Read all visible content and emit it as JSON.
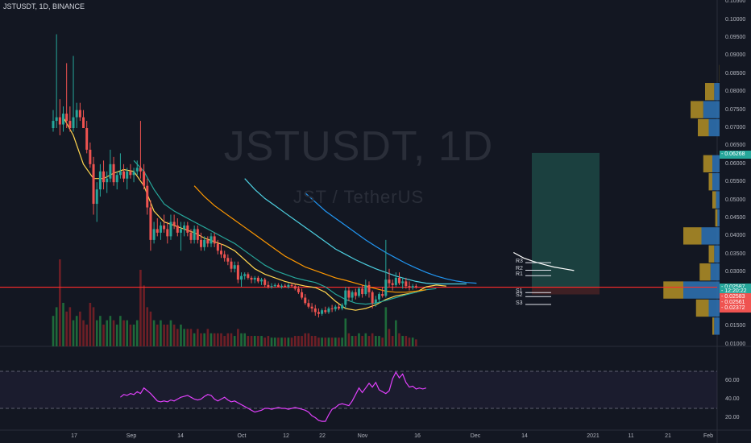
{
  "header": {
    "title": "JSTUSDT, 1D, BINANCE"
  },
  "watermark": {
    "symbol": "JSTUSDT, 1D",
    "desc": "JST / TetherUS"
  },
  "colors": {
    "up": "#26a69a",
    "down": "#ef5350",
    "bg": "#131722",
    "rsi": "#e040fb",
    "support": "#ff2b2b"
  },
  "chart_data": {
    "type": "candlestick",
    "x_ticks": [
      "17",
      "Sep",
      "14",
      "Oct",
      "12",
      "22",
      "Nov",
      "16",
      "Dec",
      "14",
      "2021",
      "11",
      "21",
      "Feb"
    ],
    "price_axis": [
      "0.10500",
      "0.10000",
      "0.09500",
      "0.09000",
      "0.08500",
      "0.08000",
      "0.07500",
      "0.07000",
      "0.06500",
      "0.06000",
      "0.05500",
      "0.05000",
      "0.04500",
      "0.04000",
      "0.03500",
      "0.03000",
      "0.02500",
      "0.02000",
      "0.01500",
      "0.01000"
    ],
    "price_range": [
      0.0095,
      0.1055
    ],
    "price_tags": [
      {
        "label": "0.06268",
        "value": 0.06268,
        "color": "#26a69a"
      },
      {
        "label": "0.02587",
        "value": 0.02587,
        "color": "#26a69a"
      },
      {
        "label": "12:20:22",
        "value": 0.0246,
        "color": "#26a69a"
      },
      {
        "label": "0.02583",
        "value": 0.0231,
        "color": "#ef5350"
      },
      {
        "label": "0.02561",
        "value": 0.0215,
        "color": "#ef5350"
      },
      {
        "label": "0.02372",
        "value": 0.0199,
        "color": "#ef5350"
      }
    ],
    "pivots": [
      {
        "label": "R3",
        "value": 0.0327
      },
      {
        "label": "R2",
        "value": 0.0306
      },
      {
        "label": "R1",
        "value": 0.0291
      },
      {
        "label": "S1",
        "value": 0.0244
      },
      {
        "label": "S2",
        "value": 0.0233
      },
      {
        "label": "S3",
        "value": 0.0211
      }
    ],
    "support_level": 0.0259,
    "target_box": {
      "from": 0.0259,
      "to": 0.0631
    },
    "candles": [
      [
        0.07,
        0.075,
        0.069,
        0.072
      ],
      [
        0.072,
        0.096,
        0.07,
        0.073
      ],
      [
        0.073,
        0.078,
        0.068,
        0.071
      ],
      [
        0.071,
        0.076,
        0.069,
        0.074
      ],
      [
        0.074,
        0.088,
        0.07,
        0.072
      ],
      [
        0.072,
        0.076,
        0.069,
        0.07
      ],
      [
        0.07,
        0.09,
        0.069,
        0.073
      ],
      [
        0.073,
        0.077,
        0.07,
        0.075
      ],
      [
        0.075,
        0.077,
        0.072,
        0.073
      ],
      [
        0.073,
        0.075,
        0.07,
        0.07
      ],
      [
        0.07,
        0.072,
        0.063,
        0.064
      ],
      [
        0.064,
        0.066,
        0.059,
        0.06
      ],
      [
        0.06,
        0.062,
        0.046,
        0.049
      ],
      [
        0.049,
        0.055,
        0.044,
        0.053
      ],
      [
        0.053,
        0.06,
        0.051,
        0.058
      ],
      [
        0.058,
        0.061,
        0.053,
        0.055
      ],
      [
        0.055,
        0.058,
        0.052,
        0.056
      ],
      [
        0.056,
        0.064,
        0.055,
        0.06
      ],
      [
        0.06,
        0.062,
        0.054,
        0.055
      ],
      [
        0.055,
        0.058,
        0.053,
        0.057
      ],
      [
        0.057,
        0.063,
        0.056,
        0.058
      ],
      [
        0.058,
        0.06,
        0.055,
        0.056
      ],
      [
        0.056,
        0.059,
        0.053,
        0.058
      ],
      [
        0.058,
        0.06,
        0.056,
        0.057
      ],
      [
        0.057,
        0.059,
        0.055,
        0.058
      ],
      [
        0.058,
        0.061,
        0.057,
        0.059
      ],
      [
        0.059,
        0.072,
        0.056,
        0.058
      ],
      [
        0.058,
        0.06,
        0.053,
        0.054
      ],
      [
        0.054,
        0.056,
        0.046,
        0.048
      ],
      [
        0.048,
        0.05,
        0.036,
        0.039
      ],
      [
        0.039,
        0.044,
        0.038,
        0.042
      ],
      [
        0.042,
        0.045,
        0.04,
        0.041
      ],
      [
        0.041,
        0.044,
        0.039,
        0.043
      ],
      [
        0.043,
        0.046,
        0.041,
        0.042
      ],
      [
        0.042,
        0.044,
        0.038,
        0.04
      ],
      [
        0.04,
        0.046,
        0.039,
        0.044
      ],
      [
        0.044,
        0.046,
        0.042,
        0.043
      ],
      [
        0.043,
        0.045,
        0.04,
        0.041
      ],
      [
        0.041,
        0.044,
        0.036,
        0.042
      ],
      [
        0.042,
        0.044,
        0.04,
        0.043
      ],
      [
        0.043,
        0.044,
        0.04,
        0.041
      ],
      [
        0.041,
        0.042,
        0.038,
        0.039
      ],
      [
        0.039,
        0.043,
        0.038,
        0.042
      ],
      [
        0.042,
        0.043,
        0.038,
        0.039
      ],
      [
        0.039,
        0.041,
        0.036,
        0.037
      ],
      [
        0.037,
        0.04,
        0.036,
        0.039
      ],
      [
        0.039,
        0.04,
        0.037,
        0.038
      ],
      [
        0.038,
        0.041,
        0.037,
        0.04
      ],
      [
        0.04,
        0.041,
        0.037,
        0.038
      ],
      [
        0.038,
        0.039,
        0.035,
        0.036
      ],
      [
        0.036,
        0.038,
        0.034,
        0.035
      ],
      [
        0.035,
        0.036,
        0.033,
        0.034
      ],
      [
        0.034,
        0.035,
        0.032,
        0.033
      ],
      [
        0.033,
        0.034,
        0.03,
        0.031
      ],
      [
        0.031,
        0.033,
        0.03,
        0.032
      ],
      [
        0.032,
        0.033,
        0.027,
        0.028
      ],
      [
        0.028,
        0.03,
        0.026,
        0.029
      ],
      [
        0.029,
        0.03,
        0.028,
        0.0295
      ],
      [
        0.0295,
        0.03,
        0.028,
        0.0285
      ],
      [
        0.0285,
        0.029,
        0.027,
        0.028
      ],
      [
        0.028,
        0.029,
        0.027,
        0.0285
      ],
      [
        0.0285,
        0.029,
        0.027,
        0.0275
      ],
      [
        0.0275,
        0.0285,
        0.0265,
        0.028
      ],
      [
        0.028,
        0.0285,
        0.026,
        0.0265
      ],
      [
        0.0265,
        0.0275,
        0.0255,
        0.026
      ],
      [
        0.026,
        0.027,
        0.0255,
        0.0262
      ],
      [
        0.0262,
        0.027,
        0.0258,
        0.0265
      ],
      [
        0.0265,
        0.027,
        0.0258,
        0.026
      ],
      [
        0.026,
        0.0268,
        0.0255,
        0.0263
      ],
      [
        0.0263,
        0.0268,
        0.0258,
        0.026
      ],
      [
        0.026,
        0.027,
        0.0255,
        0.0265
      ],
      [
        0.0265,
        0.027,
        0.0258,
        0.0262
      ],
      [
        0.0262,
        0.0268,
        0.025,
        0.0255
      ],
      [
        0.0255,
        0.0262,
        0.024,
        0.0245
      ],
      [
        0.0245,
        0.0255,
        0.0225,
        0.023
      ],
      [
        0.023,
        0.024,
        0.021,
        0.0215
      ],
      [
        0.0215,
        0.0225,
        0.02,
        0.0205
      ],
      [
        0.0205,
        0.0215,
        0.019,
        0.02
      ],
      [
        0.02,
        0.021,
        0.018,
        0.019
      ],
      [
        0.019,
        0.02,
        0.0175,
        0.0185
      ],
      [
        0.0185,
        0.02,
        0.018,
        0.0195
      ],
      [
        0.0195,
        0.0205,
        0.0185,
        0.019
      ],
      [
        0.019,
        0.0205,
        0.0185,
        0.02
      ],
      [
        0.02,
        0.021,
        0.019,
        0.0198
      ],
      [
        0.0198,
        0.021,
        0.0192,
        0.0205
      ],
      [
        0.0205,
        0.0212,
        0.0195,
        0.02
      ],
      [
        0.02,
        0.0215,
        0.0195,
        0.021
      ],
      [
        0.021,
        0.026,
        0.02,
        0.025
      ],
      [
        0.025,
        0.026,
        0.022,
        0.023
      ],
      [
        0.023,
        0.025,
        0.022,
        0.0245
      ],
      [
        0.0245,
        0.0255,
        0.0225,
        0.0235
      ],
      [
        0.0235,
        0.026,
        0.023,
        0.0255
      ],
      [
        0.0255,
        0.0265,
        0.023,
        0.024
      ],
      [
        0.024,
        0.028,
        0.0235,
        0.0265
      ],
      [
        0.0265,
        0.0275,
        0.023,
        0.0245
      ],
      [
        0.0245,
        0.025,
        0.02,
        0.0215
      ],
      [
        0.0215,
        0.0235,
        0.0205,
        0.0225
      ],
      [
        0.0225,
        0.0245,
        0.0215,
        0.024
      ],
      [
        0.024,
        0.026,
        0.023,
        0.0235
      ],
      [
        0.0235,
        0.039,
        0.023,
        0.028
      ],
      [
        0.028,
        0.031,
        0.026,
        0.027
      ],
      [
        0.027,
        0.028,
        0.025,
        0.0265
      ],
      [
        0.0265,
        0.03,
        0.026,
        0.0285
      ],
      [
        0.0285,
        0.03,
        0.0265,
        0.027
      ],
      [
        0.027,
        0.0285,
        0.0255,
        0.0275
      ],
      [
        0.0275,
        0.0285,
        0.0255,
        0.0262
      ],
      [
        0.0262,
        0.0275,
        0.025,
        0.0258
      ],
      [
        0.0258,
        0.0268,
        0.0252,
        0.0262
      ],
      [
        0.0262,
        0.0268,
        0.0255,
        0.0259
      ]
    ],
    "volumes": [
      0.35,
      0.45,
      1.0,
      0.5,
      0.4,
      0.45,
      0.3,
      0.35,
      0.4,
      0.3,
      0.25,
      0.5,
      0.45,
      0.3,
      0.35,
      0.25,
      0.3,
      0.35,
      0.3,
      0.25,
      0.35,
      0.3,
      0.3,
      0.25,
      0.25,
      0.3,
      0.88,
      0.7,
      0.45,
      0.4,
      0.3,
      0.25,
      0.3,
      0.25,
      0.25,
      0.3,
      0.25,
      0.2,
      0.25,
      0.2,
      0.2,
      0.2,
      0.15,
      0.2,
      0.15,
      0.15,
      0.2,
      0.15,
      0.15,
      0.15,
      0.15,
      0.12,
      0.15,
      0.15,
      0.12,
      0.2,
      0.15,
      0.15,
      0.12,
      0.12,
      0.12,
      0.12,
      0.12,
      0.1,
      0.12,
      0.1,
      0.1,
      0.1,
      0.1,
      0.1,
      0.1,
      0.1,
      0.12,
      0.12,
      0.12,
      0.15,
      0.15,
      0.12,
      0.12,
      0.1,
      0.1,
      0.1,
      0.1,
      0.1,
      0.1,
      0.1,
      0.1,
      0.32,
      0.15,
      0.12,
      0.12,
      0.15,
      0.12,
      0.15,
      0.12,
      0.15,
      0.12,
      0.12,
      0.1,
      0.45,
      0.2,
      0.12,
      0.3,
      0.15,
      0.12,
      0.12,
      0.1,
      0.1,
      0.08
    ],
    "ma_lines": [
      {
        "color": "#ffd54f",
        "start": 3,
        "values": [
          0.073,
          0.068,
          0.06,
          0.056,
          0.056,
          0.0575,
          0.0585,
          0.058,
          0.054,
          0.047,
          0.044,
          0.043,
          0.042,
          0.041,
          0.0395,
          0.0385,
          0.0375,
          0.036,
          0.0335,
          0.031,
          0.0295,
          0.0285,
          0.0275,
          0.0268,
          0.0262,
          0.0258,
          0.0245,
          0.022,
          0.02,
          0.0195,
          0.02,
          0.021,
          0.0225,
          0.0235,
          0.024,
          0.0245,
          0.026,
          0.0265,
          0.0262
        ]
      },
      {
        "color": "#26a69a",
        "start": 24,
        "values": [
          0.061,
          0.058,
          0.053,
          0.049,
          0.047,
          0.0455,
          0.044,
          0.0425,
          0.041,
          0.0395,
          0.038,
          0.036,
          0.034,
          0.032,
          0.0305,
          0.0295,
          0.0285,
          0.0278,
          0.0272,
          0.026,
          0.024,
          0.0225,
          0.0215,
          0.0212,
          0.0215,
          0.0222,
          0.023,
          0.0238,
          0.0245,
          0.0252,
          0.0255
        ]
      },
      {
        "color": "#ff9800",
        "start": 42,
        "values": [
          0.054,
          0.051,
          0.0485,
          0.0465,
          0.0445,
          0.0425,
          0.0405,
          0.0385,
          0.0365,
          0.0345,
          0.033,
          0.0315,
          0.0305,
          0.0295,
          0.0285,
          0.0278,
          0.027,
          0.0262,
          0.0255,
          0.0248,
          0.0245,
          0.0245,
          0.0248,
          0.0252
        ]
      },
      {
        "color": "#4dd0e1",
        "start": 57,
        "values": [
          0.056,
          0.053,
          0.0505,
          0.0485,
          0.0465,
          0.0445,
          0.0425,
          0.0405,
          0.0385,
          0.0365,
          0.035,
          0.0335,
          0.0322,
          0.031,
          0.03,
          0.029,
          0.0282,
          0.0275,
          0.027,
          0.0268,
          0.0268,
          0.0268,
          0.0268
        ]
      },
      {
        "color": "#2196f3",
        "start": 75,
        "values": [
          0.052,
          0.0495,
          0.047,
          0.045,
          0.043,
          0.041,
          0.039,
          0.0372,
          0.0355,
          0.034,
          0.0325,
          0.0312,
          0.03,
          0.029,
          0.0282,
          0.0276,
          0.0272,
          0.027
        ]
      },
      {
        "color": "#ffffff",
        "start": 137,
        "values": [
          0.0355,
          0.034,
          0.033,
          0.0322,
          0.0315,
          0.031,
          0.0305
        ]
      }
    ],
    "volume_profile": [
      {
        "price": 0.085,
        "up": 0.005,
        "down": 0
      },
      {
        "price": 0.08,
        "up": 0.25,
        "down": 0.15
      },
      {
        "price": 0.075,
        "up": 0.35,
        "down": 0.45
      },
      {
        "price": 0.07,
        "up": 0.3,
        "down": 0.3
      },
      {
        "price": 0.06,
        "up": 0.25,
        "down": 0.2
      },
      {
        "price": 0.055,
        "up": 0.1,
        "down": 0.2
      },
      {
        "price": 0.05,
        "up": 0.1,
        "down": 0.1
      },
      {
        "price": 0.045,
        "up": 0.06,
        "down": 0.06
      },
      {
        "price": 0.04,
        "up": 0.5,
        "down": 0.5
      },
      {
        "price": 0.035,
        "up": 0.15,
        "down": 0.15
      },
      {
        "price": 0.03,
        "up": 0.3,
        "down": 0.25
      },
      {
        "price": 0.025,
        "up": 0.55,
        "down": 1.0
      },
      {
        "price": 0.02,
        "up": 0.35,
        "down": 0.3
      },
      {
        "price": 0.015,
        "up": 0.05,
        "down": 0.15
      }
    ],
    "rsi": {
      "axis": [
        "60.00",
        "40.00",
        "20.00"
      ],
      "range": [
        10,
        90
      ],
      "bands": [
        70,
        30
      ],
      "start": 20,
      "values": [
        42,
        45,
        44,
        46,
        45,
        48,
        46,
        52,
        49,
        46,
        42,
        38,
        37,
        38,
        37,
        39,
        38,
        40,
        42,
        43,
        44,
        42,
        40,
        39,
        40,
        43,
        45,
        44,
        40,
        38,
        40,
        42,
        39,
        37,
        38,
        36,
        34,
        32,
        30,
        28,
        26,
        27,
        28,
        30,
        30,
        29,
        30,
        31,
        30,
        30,
        29,
        30,
        31,
        30,
        29,
        28,
        26,
        22,
        20,
        17,
        16,
        16,
        23,
        29,
        31,
        34,
        35,
        34,
        33,
        38,
        45,
        52,
        47,
        52,
        57,
        53,
        58,
        50,
        48,
        46,
        49,
        62,
        69,
        63,
        67,
        58,
        53,
        54,
        51,
        52,
        51,
        52
      ]
    }
  }
}
